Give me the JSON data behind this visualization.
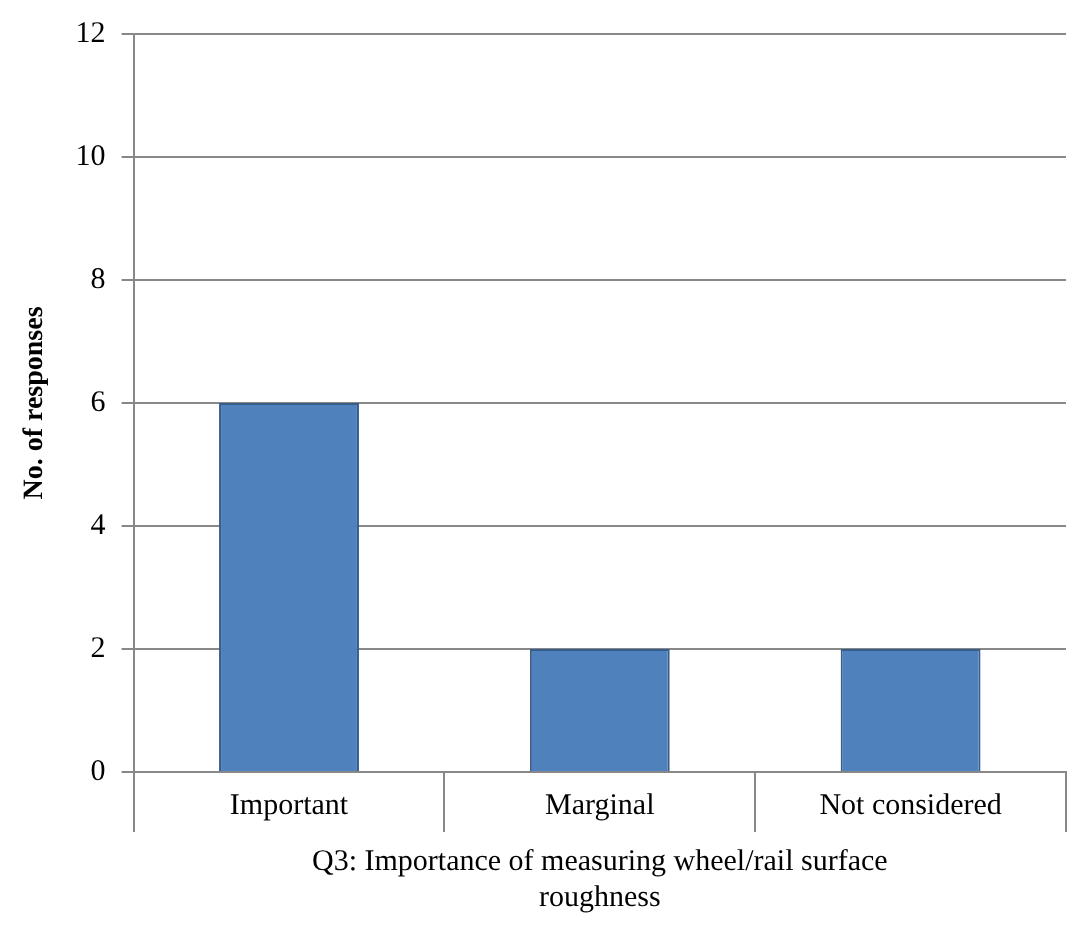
{
  "chart_data": {
    "type": "bar",
    "xlabel": "Q3: Importance of measuring wheel/rail surface roughness",
    "ylabel": "No. of responses",
    "categories": [
      "Important",
      "Marginal",
      "Not considered"
    ],
    "values": [
      6,
      2,
      2
    ],
    "color": "#4f81bd",
    "ylim": [
      0,
      12
    ],
    "yticks": [
      0,
      2,
      4,
      6,
      8,
      10,
      12
    ],
    "grid": "y",
    "legend": false
  }
}
